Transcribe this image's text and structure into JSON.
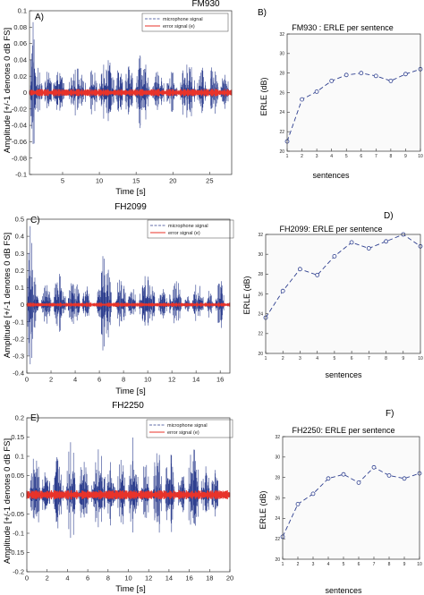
{
  "figure": {
    "panels": [
      {
        "letter": "A)",
        "title": "FM930",
        "ylabel": "Amplitude [+/-1 denotes 0 dB FS]",
        "xlabel": "Time [s]"
      },
      {
        "letter": "B)",
        "title": "FM930 : ERLE per sentence",
        "ylabel": "ERLE (dB)",
        "xlabel": "sentences"
      },
      {
        "letter": "C)",
        "title": "FH2099",
        "ylabel": "Amplitude [+/-1 denotes 0 dB FS]",
        "xlabel": "Time [s]"
      },
      {
        "letter": "D)",
        "title": "FH2099:  ERLE per sentence",
        "ylabel": "ERLE (dB)",
        "xlabel": "sentences"
      },
      {
        "letter": "E)",
        "title": "FH2250",
        "ylabel": "Amplitude [+/-1 denotes 0 dB FS]",
        "xlabel": "Time [s]"
      },
      {
        "letter": "F)",
        "title": "FH2250: ERLE per sentence",
        "ylabel": "ERLE (dB)",
        "xlabel": "sentences"
      }
    ],
    "legend": {
      "mic": "microphone signal",
      "err": "error signal (e)"
    },
    "colors": {
      "mic": "#2e3f8f",
      "err": "#e8332a",
      "erle": "#2e3f8f"
    }
  },
  "chart_data": [
    {
      "type": "line",
      "title": "FM930",
      "xlabel": "Time [s]",
      "ylabel": "Amplitude [+/-1 denotes 0 dB FS]",
      "xlim": [
        0.5,
        28
      ],
      "ylim": [
        -0.1,
        0.1
      ],
      "xticks": [
        5,
        10,
        15,
        20,
        25
      ],
      "yticks": [
        -0.1,
        -0.08,
        -0.06,
        -0.04,
        -0.02,
        0,
        0.02,
        0.04,
        0.06,
        0.08,
        0.1
      ],
      "ytick_labels": [
        "-0.1",
        "-0.08",
        "-0.06",
        "-0.04",
        "-0.02",
        "0",
        "0.02",
        "0.04",
        "0.06",
        "0.08",
        "0.1"
      ],
      "series": [
        {
          "name": "microphone signal",
          "bursts": [
            [
              0.6,
              1.4,
              0.095
            ],
            [
              1.4,
              2.2,
              0.035
            ],
            [
              2.5,
              3.5,
              0.03
            ],
            [
              3.7,
              5.4,
              0.03
            ],
            [
              5.8,
              8.2,
              0.03
            ],
            [
              8.6,
              9.7,
              0.035
            ],
            [
              10.0,
              12.0,
              0.045
            ],
            [
              12.2,
              13.2,
              0.035
            ],
            [
              13.5,
              14.6,
              0.04
            ],
            [
              14.8,
              16.8,
              0.05
            ],
            [
              17.2,
              18.8,
              0.035
            ],
            [
              19.2,
              20.6,
              0.03
            ],
            [
              21.0,
              23.0,
              0.04
            ],
            [
              23.3,
              24.6,
              0.035
            ],
            [
              24.9,
              26.2,
              0.04
            ],
            [
              26.5,
              27.6,
              0.035
            ]
          ]
        },
        {
          "name": "error signal (e)",
          "amplitude": 0.003
        }
      ]
    },
    {
      "type": "line",
      "title": "FM930 : ERLE per sentence",
      "xlabel": "sentences",
      "ylabel": "ERLE (dB)",
      "xlim": [
        1,
        10
      ],
      "ylim": [
        20,
        32
      ],
      "xticks": [
        1,
        2,
        3,
        4,
        5,
        6,
        7,
        8,
        9,
        10
      ],
      "yticks": [
        20,
        22,
        24,
        26,
        28,
        30,
        32
      ],
      "x": [
        1,
        2,
        3,
        4,
        5,
        6,
        7,
        8,
        9,
        10
      ],
      "values": [
        21.0,
        25.3,
        26.1,
        27.2,
        27.8,
        28.0,
        27.7,
        27.2,
        27.9,
        28.4
      ]
    },
    {
      "type": "line",
      "title": "FH2099",
      "xlabel": "Time [s]",
      "ylabel": "Amplitude [+/-1 denotes 0 dB FS]",
      "xlim": [
        0,
        16.8
      ],
      "ylim": [
        -0.4,
        0.5
      ],
      "xticks": [
        0,
        2,
        4,
        6,
        8,
        10,
        12,
        14,
        16
      ],
      "yticks": [
        -0.4,
        -0.3,
        -0.2,
        -0.1,
        0,
        0.1,
        0.2,
        0.3,
        0.4,
        0.5
      ],
      "ytick_labels": [
        "-0.4",
        "-0.3",
        "-0.2",
        "-0.1",
        "0",
        "0.1",
        "0.2",
        "0.3",
        "0.4",
        "0.5"
      ],
      "series": [
        {
          "name": "microphone signal",
          "bursts": [
            [
              0.05,
              0.5,
              0.48
            ],
            [
              0.5,
              1.0,
              0.2
            ],
            [
              1.2,
              2.0,
              0.12
            ],
            [
              2.2,
              3.2,
              0.2
            ],
            [
              3.4,
              4.4,
              0.16
            ],
            [
              4.6,
              5.2,
              0.12
            ],
            [
              5.8,
              7.0,
              0.3
            ],
            [
              7.3,
              8.2,
              0.17
            ],
            [
              8.4,
              9.0,
              0.12
            ],
            [
              9.3,
              10.6,
              0.2
            ],
            [
              10.9,
              11.6,
              0.1
            ],
            [
              11.8,
              12.8,
              0.16
            ],
            [
              13.0,
              13.5,
              0.06
            ],
            [
              13.7,
              14.6,
              0.14
            ],
            [
              14.9,
              15.4,
              0.1
            ],
            [
              15.6,
              16.3,
              0.17
            ]
          ]
        },
        {
          "name": "error signal (e)",
          "amplitude": 0.008
        }
      ]
    },
    {
      "type": "line",
      "title": "FH2099:  ERLE per sentence",
      "xlabel": "sentences",
      "ylabel": "ERLE (dB)",
      "xlim": [
        1,
        10
      ],
      "ylim": [
        20,
        32
      ],
      "xticks": [
        1,
        2,
        3,
        4,
        5,
        6,
        7,
        8,
        9,
        10
      ],
      "yticks": [
        20,
        22,
        24,
        26,
        28,
        30,
        32
      ],
      "x": [
        1,
        2,
        3,
        4,
        5,
        6,
        7,
        8,
        9,
        10
      ],
      "values": [
        23.6,
        26.3,
        28.5,
        27.9,
        29.8,
        31.2,
        30.6,
        31.3,
        32.0,
        30.8
      ]
    },
    {
      "type": "line",
      "title": "FH2250",
      "xlabel": "Time [s]",
      "ylabel": "Amplitude [+/-1 denotes 0 dB FS]",
      "xlim": [
        0,
        20
      ],
      "ylim": [
        -0.2,
        0.2
      ],
      "xticks": [
        0,
        2,
        4,
        6,
        8,
        10,
        12,
        14,
        16,
        18,
        20
      ],
      "yticks": [
        -0.2,
        -0.15,
        -0.1,
        -0.05,
        0,
        0.05,
        0.1,
        0.15,
        0.2
      ],
      "ytick_labels": [
        "-0.2",
        "-0.15",
        "-0.1",
        "-0.05",
        "0",
        "0.05",
        "0.1",
        "0.15",
        "0.2"
      ],
      "series": [
        {
          "name": "microphone signal",
          "bursts": [
            [
              0.3,
              1.3,
              0.12
            ],
            [
              1.5,
              2.3,
              0.09
            ],
            [
              2.6,
              3.6,
              0.11
            ],
            [
              3.9,
              4.8,
              0.15
            ],
            [
              5.1,
              6.1,
              0.1
            ],
            [
              6.4,
              7.7,
              0.13
            ],
            [
              7.9,
              8.7,
              0.09
            ],
            [
              8.9,
              9.7,
              0.1
            ],
            [
              10.0,
              11.0,
              0.16
            ],
            [
              11.3,
              12.1,
              0.1
            ],
            [
              12.4,
              13.3,
              0.13
            ],
            [
              13.6,
              14.6,
              0.12
            ],
            [
              14.9,
              15.6,
              0.07
            ],
            [
              15.9,
              16.9,
              0.15
            ],
            [
              17.2,
              18.0,
              0.09
            ],
            [
              18.2,
              18.9,
              0.08
            ]
          ]
        },
        {
          "name": "error signal (e)",
          "amplitude": 0.008
        }
      ]
    },
    {
      "type": "line",
      "title": "FH2250: ERLE per sentence",
      "xlabel": "sentences",
      "ylabel": "ERLE (dB)",
      "xlim": [
        1,
        10
      ],
      "ylim": [
        20,
        32
      ],
      "xticks": [
        1,
        2,
        3,
        4,
        5,
        6,
        7,
        8,
        9,
        10
      ],
      "yticks": [
        20,
        22,
        24,
        26,
        28,
        30,
        32
      ],
      "x": [
        1,
        2,
        3,
        4,
        5,
        6,
        7,
        8,
        9,
        10
      ],
      "values": [
        22.2,
        25.4,
        26.4,
        27.9,
        28.3,
        27.5,
        29.0,
        28.2,
        27.9,
        28.4
      ]
    }
  ]
}
